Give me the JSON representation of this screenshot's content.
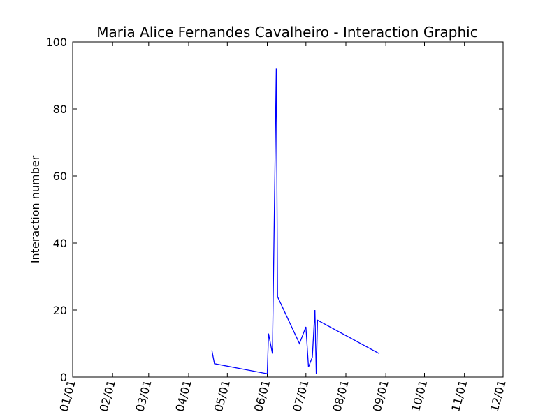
{
  "chart_data": {
    "type": "line",
    "title": "Maria Alice Fernandes Cavalheiro - Interaction Graphic",
    "xlabel": "",
    "ylabel": "Interaction number",
    "ylim": [
      0,
      100
    ],
    "yticks": [
      0,
      20,
      40,
      60,
      80,
      100
    ],
    "xlim": [
      "01/01",
      "12/01"
    ],
    "xticks": [
      "01/01",
      "02/01",
      "03/01",
      "04/01",
      "05/01",
      "06/01",
      "07/01",
      "08/01",
      "09/01",
      "10/01",
      "11/01",
      "12/01"
    ],
    "grid": false,
    "line_color": "#0000ff",
    "series": [
      {
        "x": [
          "04/19",
          "04/21",
          "06/01",
          "06/02",
          "06/05",
          "06/08",
          "06/09",
          "06/26",
          "07/01",
          "07/03",
          "07/06",
          "07/08",
          "07/09",
          "07/10",
          "08/27"
        ],
        "values": [
          8,
          4,
          1,
          13,
          7,
          92,
          24,
          10,
          15,
          3,
          6,
          20,
          1,
          17,
          7
        ]
      }
    ]
  }
}
